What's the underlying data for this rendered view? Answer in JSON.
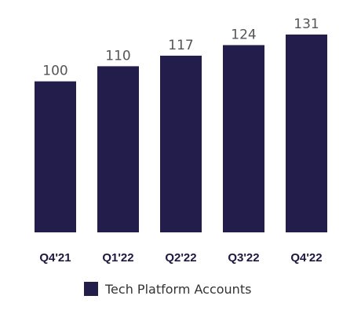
{
  "chart_data": {
    "type": "bar",
    "categories": [
      "Q4'21",
      "Q1'22",
      "Q2'22",
      "Q3'22",
      "Q4'22"
    ],
    "series": [
      {
        "name": "Tech Platform Accounts",
        "values": [
          100,
          110,
          117,
          124,
          131
        ]
      }
    ],
    "data_labels": [
      "100",
      "110",
      "117",
      "124",
      "131"
    ],
    "ylim": [
      0,
      131
    ],
    "grid": false,
    "legend": "bottom-center",
    "colors": {
      "bar": "#221d4a",
      "value_label": "#555555",
      "category_label": "#1c1840"
    }
  }
}
